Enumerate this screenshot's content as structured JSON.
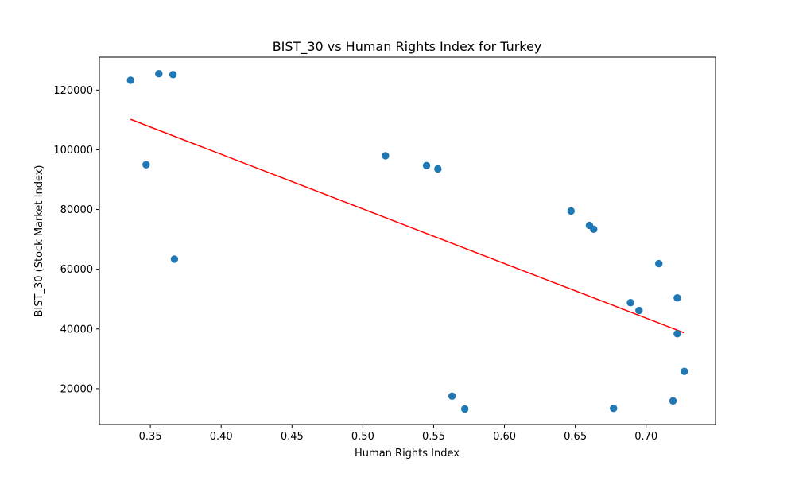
{
  "chart_data": {
    "type": "scatter",
    "title": "BIST_30 vs Human Rights Index for Turkey",
    "xlabel": "Human Rights Index",
    "ylabel": "BIST_30 (Stock Market Index)",
    "xlim": [
      0.314,
      0.749
    ],
    "ylim": [
      8000,
      131000
    ],
    "xticks": [
      0.35,
      0.4,
      0.45,
      0.5,
      0.55,
      0.6,
      0.65,
      0.7
    ],
    "xtick_labels": [
      "0.35",
      "0.40",
      "0.45",
      "0.50",
      "0.55",
      "0.60",
      "0.65",
      "0.70"
    ],
    "yticks": [
      20000,
      40000,
      60000,
      80000,
      100000,
      120000
    ],
    "ytick_labels": [
      "20000",
      "40000",
      "60000",
      "80000",
      "100000",
      "120000"
    ],
    "grid": false,
    "series": [
      {
        "marker_color": "#1f77b4",
        "points": [
          {
            "x": 0.336,
            "y": 123300
          },
          {
            "x": 0.356,
            "y": 125500
          },
          {
            "x": 0.366,
            "y": 125200
          },
          {
            "x": 0.347,
            "y": 95000
          },
          {
            "x": 0.367,
            "y": 63400
          },
          {
            "x": 0.516,
            "y": 98000
          },
          {
            "x": 0.545,
            "y": 94700
          },
          {
            "x": 0.553,
            "y": 93600
          },
          {
            "x": 0.563,
            "y": 17500
          },
          {
            "x": 0.572,
            "y": 13200
          },
          {
            "x": 0.647,
            "y": 79500
          },
          {
            "x": 0.66,
            "y": 74700
          },
          {
            "x": 0.663,
            "y": 73400
          },
          {
            "x": 0.677,
            "y": 13400
          },
          {
            "x": 0.689,
            "y": 48800
          },
          {
            "x": 0.695,
            "y": 46200
          },
          {
            "x": 0.709,
            "y": 61900
          },
          {
            "x": 0.719,
            "y": 15900
          },
          {
            "x": 0.722,
            "y": 50400
          },
          {
            "x": 0.722,
            "y": 38400
          },
          {
            "x": 0.727,
            "y": 25800
          }
        ]
      }
    ],
    "trend_line": {
      "color": "#ff0000",
      "points": [
        {
          "x": 0.336,
          "y": 110200
        },
        {
          "x": 0.727,
          "y": 38700
        }
      ]
    }
  }
}
